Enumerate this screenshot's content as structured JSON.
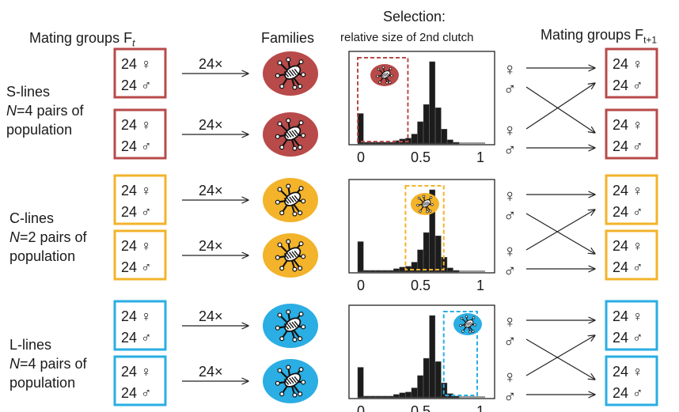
{
  "headers": {
    "mating_ft": "Mating groups F",
    "mating_ft_sub": "t",
    "families": "Families",
    "selection_title": "Selection:",
    "selection_sub": "relative size of 2nd clutch",
    "mating_ft1": "Mating groups F",
    "mating_ft1_sub": "t+1"
  },
  "colors": {
    "S": "#b84a4a",
    "C": "#f3b32a",
    "L": "#2aaee3",
    "bars": "#1c1c1c"
  },
  "group_box": {
    "count_female": "24 ♀",
    "count_male": "24 ♂"
  },
  "arrow_label": "24×",
  "sex_symbols": {
    "female": "♀",
    "male": "♂"
  },
  "lines": [
    {
      "id": "S",
      "name": "S-lines",
      "n_italic": "N",
      "n_rest": "=4 pairs of",
      "population": "population",
      "selection_window": "low (0–0.4)"
    },
    {
      "id": "C",
      "name": "C-lines",
      "n_italic": "N",
      "n_rest": "=2 pairs of",
      "population": "population",
      "selection_window": "middle (0.4–0.7)"
    },
    {
      "id": "L",
      "name": "L-lines",
      "n_italic": "N",
      "n_rest": "=4 pairs of",
      "population": "population",
      "selection_window": "high (0.7–1)"
    }
  ],
  "histogram_icon": "beetle-family-icon",
  "chart_data": {
    "type": "bar",
    "title": "",
    "xlabel": "",
    "ylabel": "",
    "x_ticks": [
      "0",
      "0.5",
      "1"
    ],
    "xlim": [
      0,
      1
    ],
    "categories": [
      "0",
      "0.05",
      "0.1",
      "0.15",
      "0.2",
      "0.25",
      "0.3",
      "0.35",
      "0.4",
      "0.45",
      "0.5",
      "0.55",
      "0.6",
      "0.65",
      "0.7",
      "0.75",
      "0.8"
    ],
    "values": [
      0.37,
      0.02,
      0.02,
      0.02,
      0.02,
      0.02,
      0.04,
      0.06,
      0.07,
      0.12,
      0.27,
      0.48,
      1.0,
      0.44,
      0.18,
      0.05,
      0.02
    ]
  }
}
